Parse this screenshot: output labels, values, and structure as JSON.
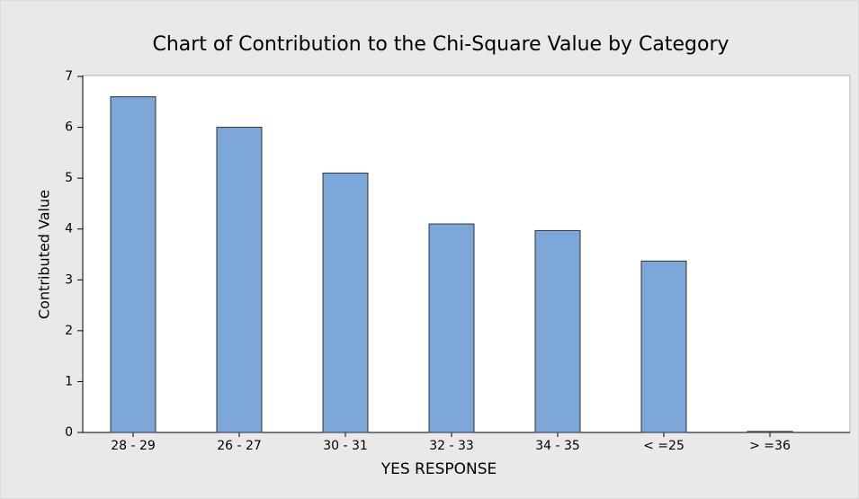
{
  "chart_data": {
    "type": "bar",
    "title": "Chart of Contribution to the Chi-Square Value by Category",
    "x_label": "YES RESPONSE",
    "y_label": "Contributed Value",
    "categories": [
      "28 - 29",
      "26 - 27",
      "30 - 31",
      "32 - 33",
      "34 - 35",
      "< =25",
      "> =36"
    ],
    "values": [
      6.6,
      6.0,
      5.1,
      4.1,
      3.97,
      3.37,
      0.02
    ],
    "color": "#7da6d9",
    "ylim": [
      0,
      7
    ],
    "yticks": [
      0,
      1,
      2,
      3,
      4,
      5,
      6,
      7
    ],
    "grid": false
  }
}
